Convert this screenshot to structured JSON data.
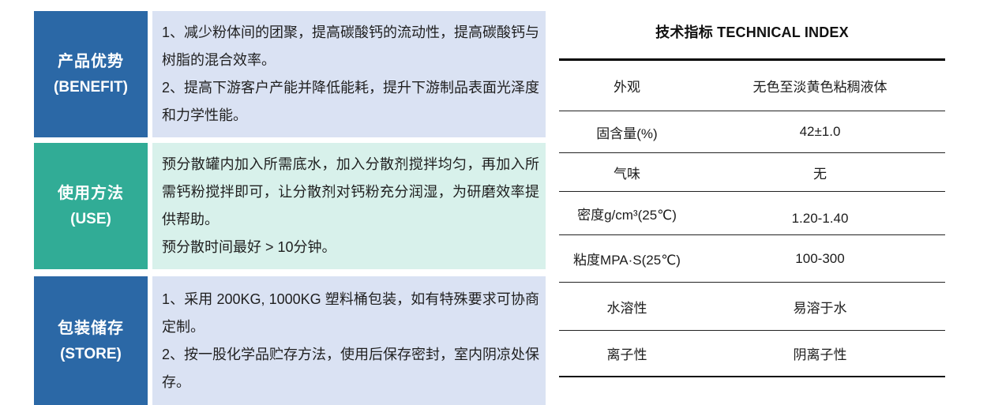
{
  "colors": {
    "label_blue": "#2B68A6",
    "label_teal": "#31AC96",
    "content_lavender": "#DAE2F3",
    "content_mint": "#D8F1EB",
    "table_line_black": "#000000",
    "label_text_white": "#FFFFFF"
  },
  "left_table": {
    "rows": [
      {
        "label_zh": "产品优势",
        "label_en": "(BENEFIT)",
        "paragraphs": [
          "1、减少粉体间的团聚，提高碳酸钙的流动性，提高碳酸钙与树脂的混合效率。",
          "2、提高下游客户产能并降低能耗，提升下游制品表面光泽度和力学性能。"
        ]
      },
      {
        "label_zh": "使用方法",
        "label_en": "(USE)",
        "paragraphs": [
          "预分散罐内加入所需底水，加入分散剂搅拌均匀，再加入所需钙粉搅拌即可，让分散剂对钙粉充分润湿，为研磨效率提供帮助。",
          "预分散时间最好 > 10分钟。"
        ]
      },
      {
        "label_zh": "包装储存",
        "label_en": "(STORE)",
        "paragraphs": [
          "1、采用 200KG, 1000KG 塑料桶包装，如有特殊要求可协商定制。",
          "2、按一股化学品贮存方法，使用后保存密封，室内阴凉处保存。"
        ]
      }
    ]
  },
  "technical_index": {
    "title": "技术指标 TECHNICAL INDEX",
    "rows": [
      {
        "name": "外观",
        "value": "无色至淡黄色粘稠液体"
      },
      {
        "name": "固含量(%)",
        "value": "42±1.0"
      },
      {
        "name": "气味",
        "value": "无"
      },
      {
        "name": "密度g/cm³(25℃)",
        "value": "1.20-1.40"
      },
      {
        "name": "粘度MPA·S(25℃)",
        "value": "100-300"
      },
      {
        "name": "水溶性",
        "value": "易溶于水"
      },
      {
        "name": "离子性",
        "value": "阴离子性"
      }
    ]
  }
}
